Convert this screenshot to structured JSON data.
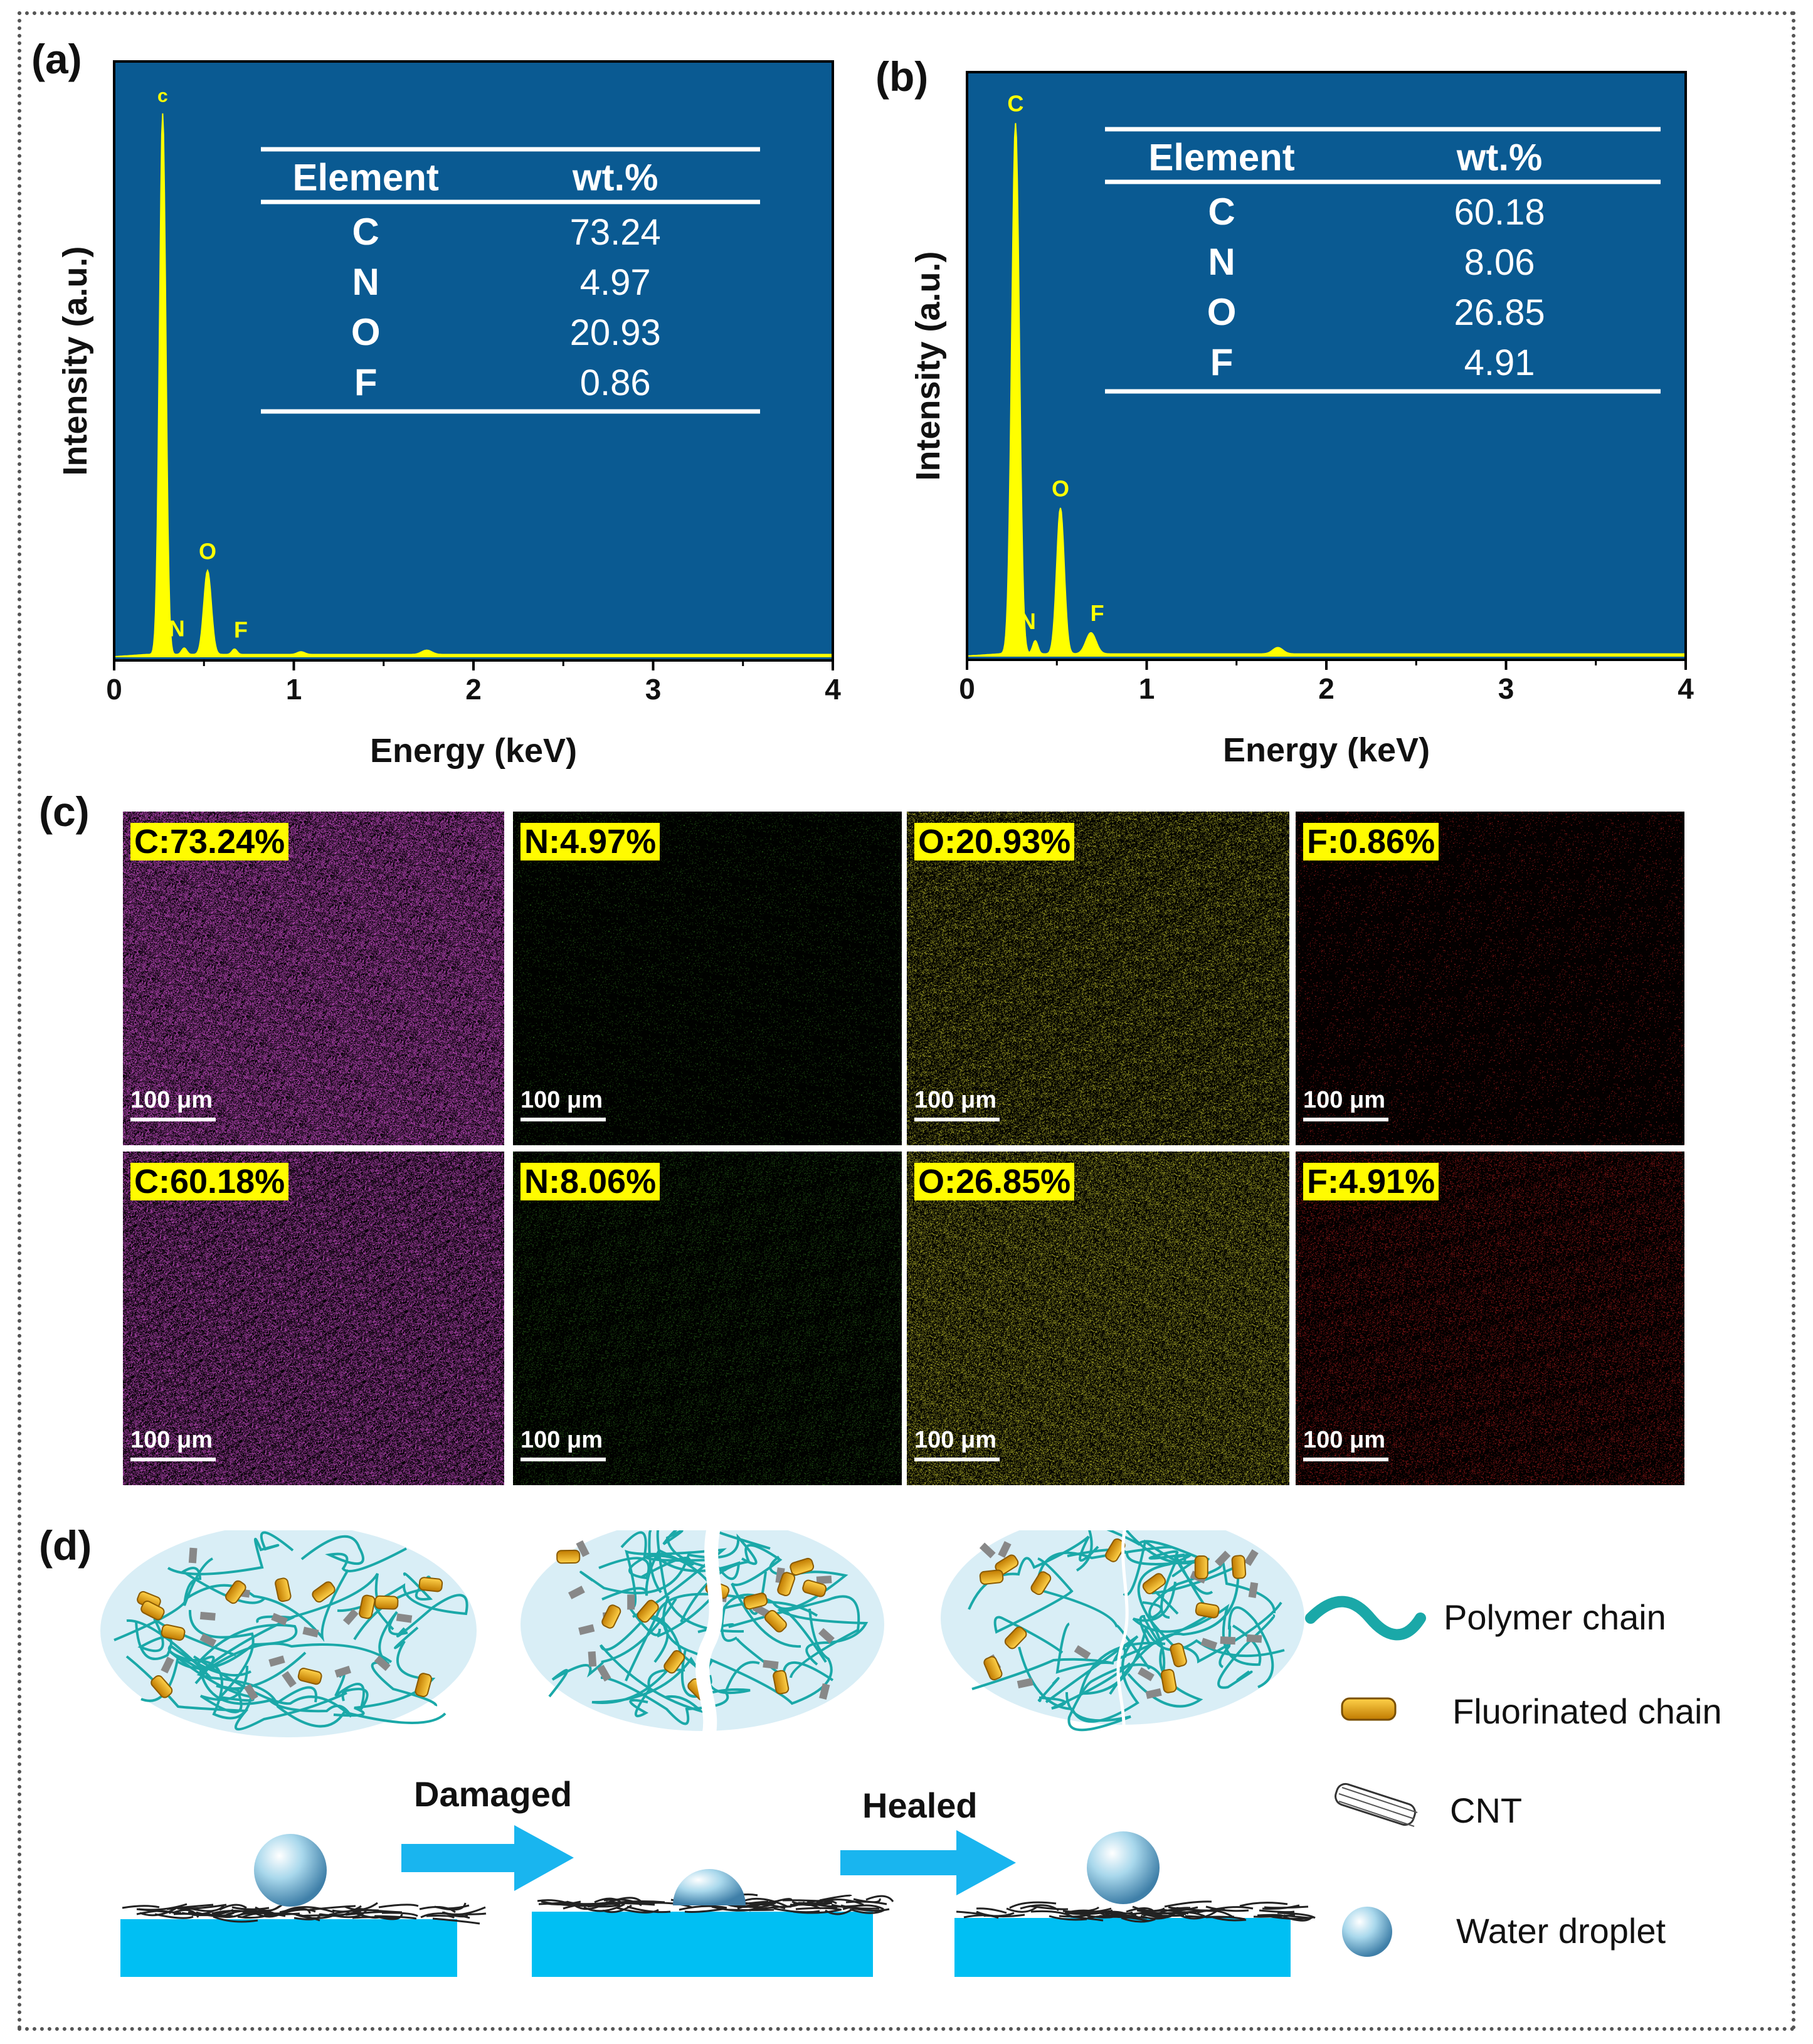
{
  "panels": {
    "a": "(a)",
    "b": "(b)",
    "c": "(c)",
    "d": "(d)"
  },
  "colors": {
    "plot_bg": "#0a5a92",
    "spectrum": "#ffff00",
    "peak_label": "#ffff00",
    "map_bg": "#000000",
    "label_bg": "#fffb00",
    "C": "#c04ac0",
    "N": "#2a6a1a",
    "O": "#b5b52a",
    "F": "#c02020",
    "substrate": "#00bff3",
    "arrow": "#19b5ef",
    "ellipse": "#d9eef6",
    "chain": "#1aa8a8",
    "fchain": "#f0a500"
  },
  "chart_data": [
    {
      "type": "line",
      "id": "a",
      "xlabel": "Energy (keV)",
      "ylabel": "Intensity (a.u.)",
      "xlim": [
        0,
        4
      ],
      "ylim": [
        0,
        1.1
      ],
      "xticks": [
        "0",
        "1",
        "2",
        "3",
        "4"
      ],
      "peaks": [
        {
          "label": "c",
          "x": 0.27,
          "y": 1.0,
          "width": 0.025
        },
        {
          "label": "N",
          "x": 0.39,
          "y": 0.012,
          "width": 0.02
        },
        {
          "label": "O",
          "x": 0.52,
          "y": 0.155,
          "width": 0.03
        },
        {
          "label": "F",
          "x": 0.67,
          "y": 0.01,
          "width": 0.02
        },
        {
          "label": "",
          "x": 1.04,
          "y": 0.005,
          "width": 0.03
        },
        {
          "label": "",
          "x": 1.74,
          "y": 0.008,
          "width": 0.04
        }
      ],
      "table": {
        "headers": [
          "Element",
          "wt.%"
        ],
        "rows": [
          [
            "C",
            "73.24"
          ],
          [
            "N",
            "4.97"
          ],
          [
            "O",
            "20.93"
          ],
          [
            "F",
            "0.86"
          ]
        ]
      }
    },
    {
      "type": "line",
      "id": "b",
      "xlabel": "Energy (keV)",
      "ylabel": "Intensity (a.u.)",
      "xlim": [
        0,
        4
      ],
      "ylim": [
        0,
        1.1
      ],
      "xticks": [
        "0",
        "1",
        "2",
        "3",
        "4"
      ],
      "peaks": [
        {
          "label": "C",
          "x": 0.27,
          "y": 1.0,
          "width": 0.03
        },
        {
          "label": "N",
          "x": 0.38,
          "y": 0.025,
          "width": 0.02
        },
        {
          "label": "O",
          "x": 0.52,
          "y": 0.275,
          "width": 0.03
        },
        {
          "label": "F",
          "x": 0.69,
          "y": 0.04,
          "width": 0.04
        },
        {
          "label": "",
          "x": 1.73,
          "y": 0.012,
          "width": 0.04
        }
      ],
      "table": {
        "headers": [
          "Element",
          "wt.%"
        ],
        "rows": [
          [
            "C",
            "60.18"
          ],
          [
            "N",
            "8.06"
          ],
          [
            "O",
            "26.85"
          ],
          [
            "F",
            "4.91"
          ]
        ]
      }
    }
  ],
  "maps": [
    {
      "label": "C:73.24%",
      "element": "C",
      "density": 0.55
    },
    {
      "label": "N:4.97%",
      "element": "N",
      "density": 0.05
    },
    {
      "label": "O:20.93%",
      "element": "O",
      "density": 0.25
    },
    {
      "label": "F:0.86%",
      "element": "F",
      "density": 0.04
    },
    {
      "label": "C:60.18%",
      "element": "C",
      "density": 0.45
    },
    {
      "label": "N:8.06%",
      "element": "N",
      "density": 0.12
    },
    {
      "label": "O:26.85%",
      "element": "O",
      "density": 0.32
    },
    {
      "label": "F:4.91%",
      "element": "F",
      "density": 0.14
    }
  ],
  "scale_bar": "100 μm",
  "schematic": {
    "arrow1": "Damaged",
    "arrow2": "Healed",
    "legend": [
      "Polymer chain",
      "Fluorinated chain",
      "CNT",
      "Water droplet"
    ]
  }
}
